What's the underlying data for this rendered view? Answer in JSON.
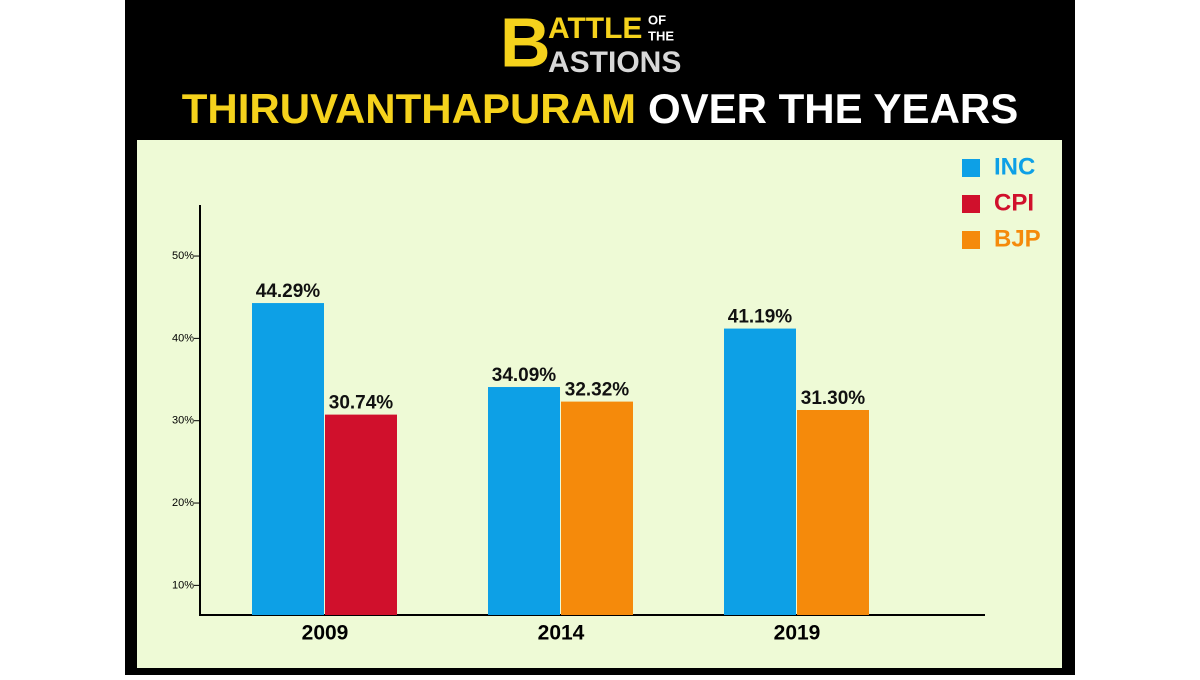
{
  "chart_data": {
    "type": "bar",
    "brand": [
      "B",
      "ATTLE",
      "OF",
      "THE",
      "ASTIONS"
    ],
    "title": [
      "THIRUVANTHAPURAM",
      "OVER THE YEARS"
    ],
    "categories": [
      "2009",
      "2014",
      "2019"
    ],
    "series": [
      {
        "name": "INC",
        "color": "#0da0e6",
        "values": [
          44.29,
          34.09,
          41.19
        ],
        "value_labels": [
          "44.29%",
          "34.09%",
          "41.19%"
        ]
      },
      {
        "name": "CPI",
        "color": "#d0102c",
        "values": [
          30.74,
          null,
          null
        ],
        "value_labels": [
          "30.74%",
          null,
          null
        ]
      },
      {
        "name": "BJP",
        "color": "#f58a0b",
        "values": [
          null,
          32.32,
          31.3
        ],
        "value_labels": [
          null,
          "32.32%",
          "31.30%"
        ]
      }
    ],
    "ylim": [
      6.4,
      56.2
    ],
    "yticks": [
      {
        "value": 10,
        "label": "10%"
      },
      {
        "value": 20,
        "label": "20%"
      },
      {
        "value": 30,
        "label": "30%"
      },
      {
        "value": 40,
        "label": "40%"
      },
      {
        "value": 50,
        "label": "50%"
      }
    ],
    "legend": "top-right"
  }
}
